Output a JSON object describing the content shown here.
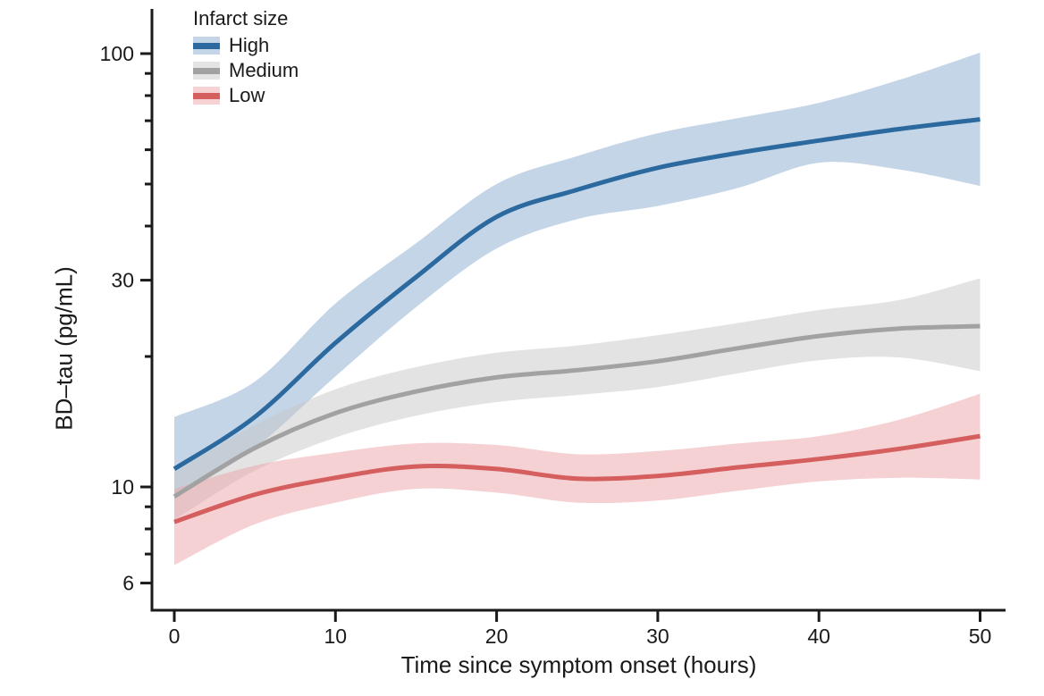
{
  "chart_data": {
    "type": "line",
    "title": "",
    "xlabel": "Time since symptom onset (hours)",
    "ylabel": "BD–tau (pg/mL)",
    "x_axis": {
      "ticks": [
        0,
        10,
        20,
        30,
        40,
        50
      ],
      "range_shown": [
        -1.4,
        52
      ]
    },
    "y_axis": {
      "scale": "log10",
      "major_ticks": [
        100,
        30,
        10,
        6
      ],
      "minor_ticks": [
        90,
        80,
        70,
        60,
        50,
        40,
        20,
        9,
        8,
        7
      ],
      "range_shown": [
        5.2,
        115
      ]
    },
    "grid": "off",
    "legend": {
      "title": "Infarct size",
      "position": "top-left",
      "entries": [
        "High",
        "Medium",
        "Low"
      ]
    },
    "x": [
      0,
      5,
      10,
      15,
      20,
      25,
      30,
      35,
      40,
      45,
      50
    ],
    "series": [
      {
        "name": "High",
        "color": "#2b699e",
        "band_color": "#88abcf",
        "band_opacity": 0.5,
        "band_color_solid": "#c4d5e7",
        "values": [
          11.0,
          14.5,
          21.5,
          30.5,
          42.0,
          48.5,
          54.5,
          59.0,
          63.0,
          67.0,
          70.5
        ],
        "lower": [
          9.4,
          12.3,
          18.0,
          26.0,
          35.5,
          41.5,
          44.5,
          49.0,
          56.0,
          54.0,
          49.5
        ],
        "upper": [
          14.5,
          17.5,
          26.5,
          36.5,
          50.0,
          58.0,
          65.5,
          71.0,
          77.0,
          87.0,
          100.5
        ]
      },
      {
        "name": "Medium",
        "color": "#a2a2a2",
        "band_color": "#c8c8c8",
        "band_opacity": 0.5,
        "band_color_solid": "#e4e4e4",
        "values": [
          9.5,
          12.3,
          14.8,
          16.6,
          17.9,
          18.6,
          19.5,
          20.9,
          22.3,
          23.2,
          23.5
        ],
        "lower": [
          8.4,
          10.9,
          13.0,
          14.6,
          15.7,
          16.3,
          17.0,
          18.3,
          19.6,
          19.9,
          18.5
        ],
        "upper": [
          10.8,
          13.9,
          16.8,
          18.9,
          20.4,
          21.2,
          22.4,
          23.9,
          25.6,
          27.0,
          30.3
        ]
      },
      {
        "name": "Low",
        "color": "#d55e5e",
        "band_color": "#eca4a9",
        "band_opacity": 0.5,
        "band_color_solid": "#f6d2d4",
        "values": [
          8.3,
          9.6,
          10.5,
          11.15,
          11.0,
          10.45,
          10.6,
          11.1,
          11.6,
          12.25,
          13.1
        ],
        "lower": [
          6.6,
          8.2,
          9.2,
          9.9,
          9.7,
          9.2,
          9.3,
          9.8,
          10.3,
          10.5,
          10.4
        ],
        "upper": [
          9.9,
          11.2,
          12.0,
          12.6,
          12.5,
          11.9,
          12.1,
          12.6,
          13.1,
          14.3,
          16.4
        ]
      }
    ],
    "axis_color": "#1a1a1a"
  }
}
